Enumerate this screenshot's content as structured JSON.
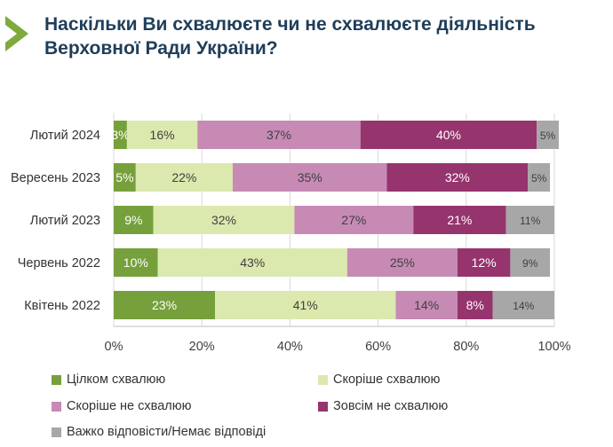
{
  "header": {
    "title_line1": "Наскільки Ви схвалюєте чи не схвалюєте діяльність",
    "title_line2": "Верховної Ради України?"
  },
  "colors": {
    "title": "#1f3e5a",
    "arrow": "#7faa3c",
    "series": [
      "#76a03b",
      "#dbe9ae",
      "#c68ab5",
      "#96346e",
      "#a7a7a7"
    ]
  },
  "chart_data": {
    "type": "bar",
    "orientation": "horizontal",
    "stacked": true,
    "title": "Наскільки Ви схвалюєте чи не схвалюєте діяльність Верховної Ради України?",
    "categories": [
      "Лютий 2024",
      "Вересень 2023",
      "Лютий 2023",
      "Червень 2022",
      "Квітень 2022"
    ],
    "series": [
      {
        "name": "Цілком схвалюю",
        "values": [
          3,
          5,
          9,
          10,
          23
        ],
        "color": "#76a03b"
      },
      {
        "name": "Скоріше схвалюю",
        "values": [
          16,
          22,
          32,
          43,
          41
        ],
        "color": "#dbe9ae"
      },
      {
        "name": "Скоріше не схвалюю",
        "values": [
          37,
          35,
          27,
          25,
          14
        ],
        "color": "#c68ab5"
      },
      {
        "name": "Зовсім не схвалюю",
        "values": [
          40,
          32,
          21,
          12,
          8
        ],
        "color": "#96346e"
      },
      {
        "name": "Важко відповісти/Немає відповіді",
        "values": [
          5,
          5,
          11,
          9,
          14
        ],
        "color": "#a7a7a7"
      }
    ],
    "xlim": [
      0,
      100
    ],
    "xticks": [
      "0%",
      "20%",
      "40%",
      "60%",
      "80%",
      "100%"
    ],
    "value_suffix": "%",
    "legend_position": "bottom",
    "grid": true
  }
}
